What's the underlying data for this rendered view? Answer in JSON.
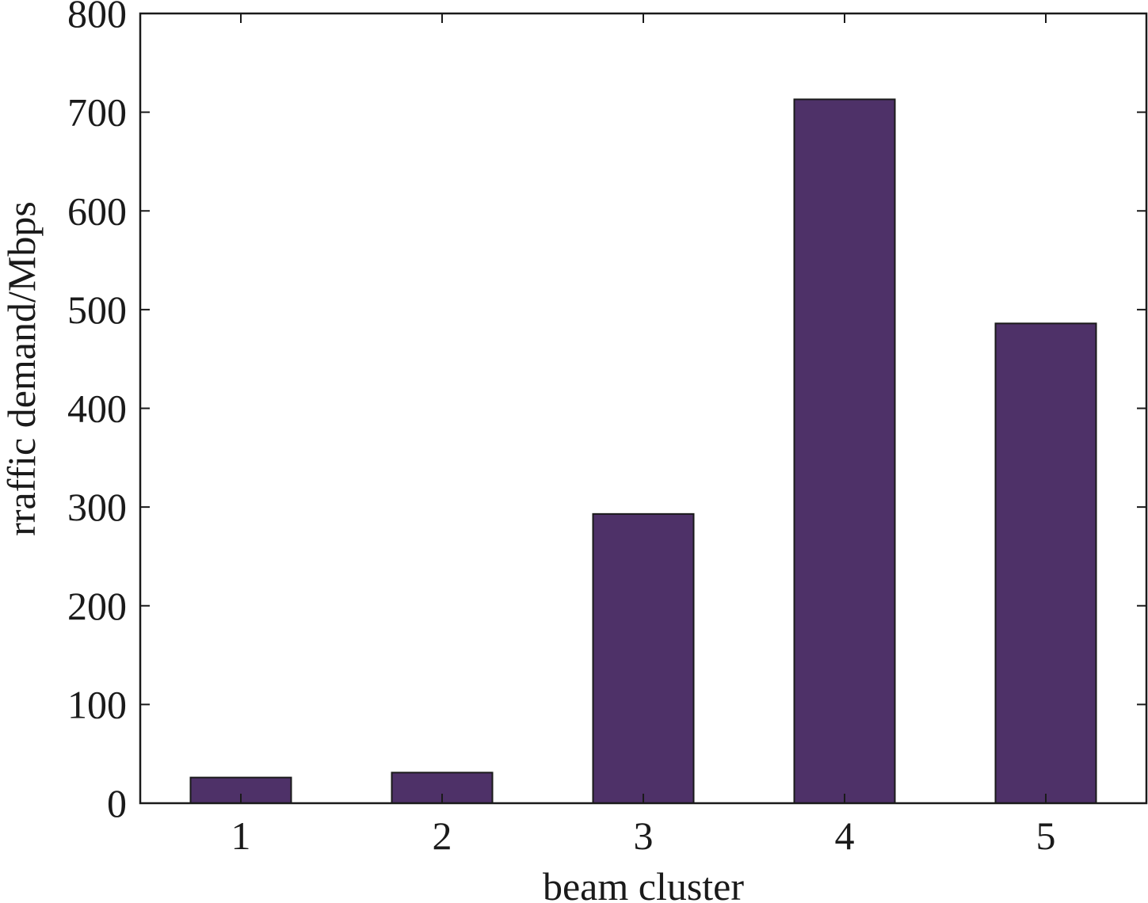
{
  "chart_data": {
    "type": "bar",
    "title": "",
    "xlabel": "beam cluster",
    "ylabel": "rraffic demand/Mbps",
    "categories": [
      "1",
      "2",
      "3",
      "4",
      "5"
    ],
    "values": [
      26,
      31,
      293,
      713,
      486
    ],
    "ylim": [
      0,
      800
    ],
    "yticks": [
      "0",
      "100",
      "200",
      "300",
      "400",
      "500",
      "600",
      "700",
      "800"
    ],
    "grid": false,
    "legend": "none",
    "bar_color": "#4e3168",
    "edge_color": "#1a1a1a"
  }
}
